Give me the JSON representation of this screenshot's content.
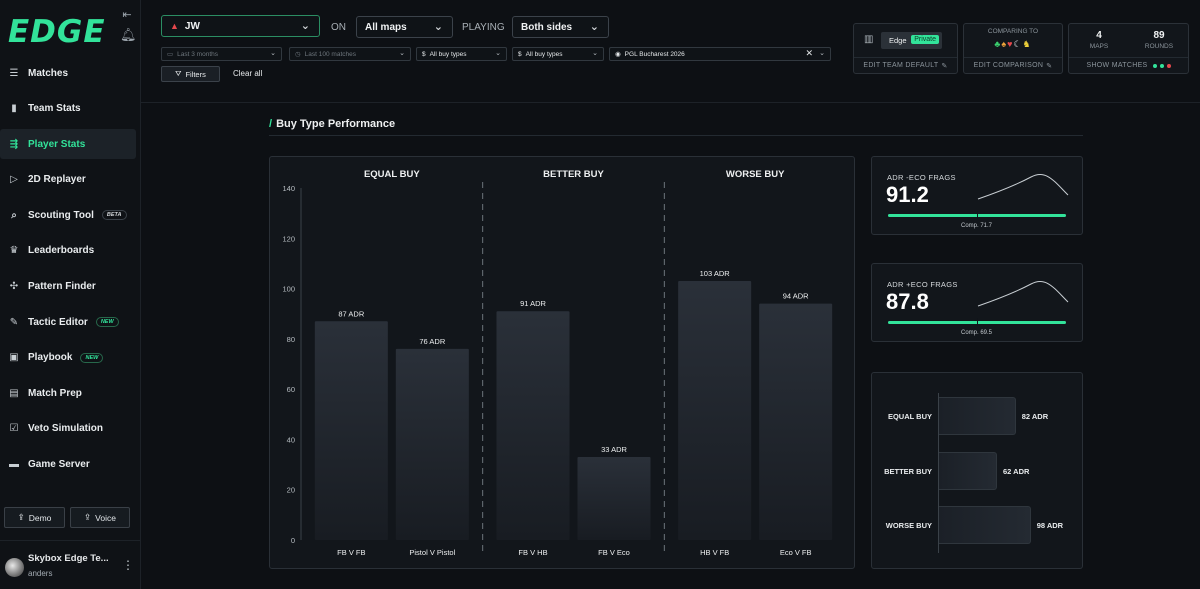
{
  "app": {
    "logo": "EDGE"
  },
  "sidebar": {
    "items": [
      {
        "label": "Matches",
        "icon": "list-icon",
        "glyph": "☰",
        "active": false
      },
      {
        "label": "Team Stats",
        "icon": "bar-chart-icon",
        "glyph": "▮",
        "active": false
      },
      {
        "label": "Player Stats",
        "icon": "player-stats-icon",
        "glyph": "⇶",
        "active": true
      },
      {
        "label": "2D Replayer",
        "icon": "play-icon",
        "glyph": "▷",
        "active": false
      },
      {
        "label": "Scouting Tool",
        "icon": "search-icon",
        "glyph": "⌕",
        "active": false,
        "badge": "BETA"
      },
      {
        "label": "Leaderboards",
        "icon": "trophy-icon",
        "glyph": "♛",
        "active": false
      },
      {
        "label": "Pattern Finder",
        "icon": "puzzle-icon",
        "glyph": "✣",
        "active": false
      },
      {
        "label": "Tactic Editor",
        "icon": "edit-icon",
        "glyph": "✎",
        "active": false,
        "badge": "NEW"
      },
      {
        "label": "Playbook",
        "icon": "book-icon",
        "glyph": "▣",
        "active": false,
        "badge": "NEW"
      },
      {
        "label": "Match Prep",
        "icon": "clipboard-icon",
        "glyph": "▤",
        "active": false
      },
      {
        "label": "Veto Simulation",
        "icon": "checklist-icon",
        "glyph": "☑",
        "active": false
      },
      {
        "label": "Game Server",
        "icon": "server-icon",
        "glyph": "▬",
        "active": false
      }
    ],
    "demo_label": "Demo",
    "voice_label": "Voice",
    "user_name": "Skybox Edge Te...",
    "user_sub": "anders"
  },
  "topbar": {
    "team": "JW",
    "on_label": "ON",
    "maps": "All maps",
    "playing_label": "PLAYING",
    "sides": "Both sides",
    "date_filter": "Last 3 months",
    "match_filter": "Last 100 matches",
    "buy_type_1": "All buy types",
    "buy_type_2": "All buy types",
    "event": "PGL Bucharest 2026",
    "filters_label": "Filters",
    "clear_all_label": "Clear all",
    "team_default": {
      "edge_label": "Edge",
      "private_label": "Private",
      "footer": "EDIT TEAM DEFAULT"
    },
    "comparison": {
      "title": "COMPARING TO",
      "footer": "EDIT COMPARISON"
    },
    "stats": {
      "maps_value": "4",
      "maps_label": "MAPS",
      "rounds_value": "89",
      "rounds_label": "ROUNDS",
      "footer": "SHOW MATCHES"
    },
    "colors": {
      "accent": "#32e39a",
      "dot_red": "#e5484d"
    }
  },
  "main": {
    "section_title": "Buy Type Performance"
  },
  "chart_data": [
    {
      "type": "bar",
      "groups": [
        "EQUAL BUY",
        "BETTER BUY",
        "WORSE BUY"
      ],
      "categories": [
        "FB V FB",
        "Pistol V Pistol",
        "FB V HB",
        "FB V Eco",
        "HB V FB",
        "Eco V FB"
      ],
      "values": [
        87,
        76,
        91,
        33,
        103,
        94
      ],
      "value_labels": [
        "87 ADR",
        "76 ADR",
        "91 ADR",
        "33 ADR",
        "103 ADR",
        "94 ADR"
      ],
      "y_ticks": [
        "0",
        "20",
        "40",
        "60",
        "80",
        "100",
        "120",
        "140"
      ],
      "ylim": [
        0,
        140
      ]
    },
    {
      "type": "bar",
      "orientation": "horizontal",
      "categories": [
        "EQUAL BUY",
        "BETTER BUY",
        "WORSE BUY"
      ],
      "values": [
        82,
        62,
        98
      ],
      "value_labels": [
        "82 ADR",
        "62 ADR",
        "98 ADR"
      ],
      "xlim": [
        0,
        140
      ]
    }
  ],
  "adr_cards": [
    {
      "label": "ADR -ECO FRAGS",
      "value": "91.2",
      "fill_fraction": 1.0,
      "comp_fraction": 0.5,
      "comp_label": "Comp. 71.7"
    },
    {
      "label": "ADR +ECO FRAGS",
      "value": "87.8",
      "fill_fraction": 1.0,
      "comp_fraction": 0.5,
      "comp_label": "Comp. 69.5"
    }
  ]
}
